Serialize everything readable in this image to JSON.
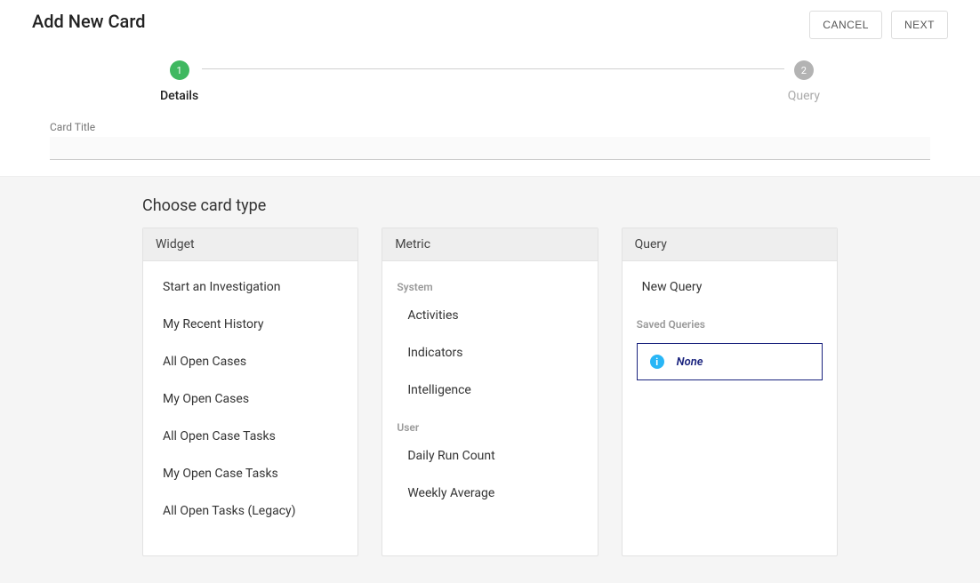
{
  "header": {
    "title": "Add New Card",
    "cancel_label": "CANCEL",
    "next_label": "NEXT"
  },
  "stepper": {
    "steps": [
      {
        "number": "1",
        "label": "Details",
        "active": true
      },
      {
        "number": "2",
        "label": "Query",
        "active": false
      }
    ]
  },
  "form": {
    "card_title_label": "Card Title",
    "card_title_value": ""
  },
  "choose": {
    "title": "Choose card type",
    "widget": {
      "header": "Widget",
      "items": [
        "Start an Investigation",
        "My Recent History",
        "All Open Cases",
        "My Open Cases",
        "All Open Case Tasks",
        "My Open Case Tasks",
        "All Open Tasks (Legacy)"
      ]
    },
    "metric": {
      "header": "Metric",
      "system_label": "System",
      "system_items": [
        "Activities",
        "Indicators",
        "Intelligence"
      ],
      "user_label": "User",
      "user_items": [
        "Daily Run Count",
        "Weekly Average"
      ]
    },
    "query": {
      "header": "Query",
      "new_query_label": "New Query",
      "saved_label": "Saved Queries",
      "none_label": "None"
    }
  },
  "colors": {
    "step_active": "#3fb860",
    "step_inactive": "#b3b3b3",
    "info_border": "#1a237e",
    "info_icon_bg": "#29b6f6"
  }
}
